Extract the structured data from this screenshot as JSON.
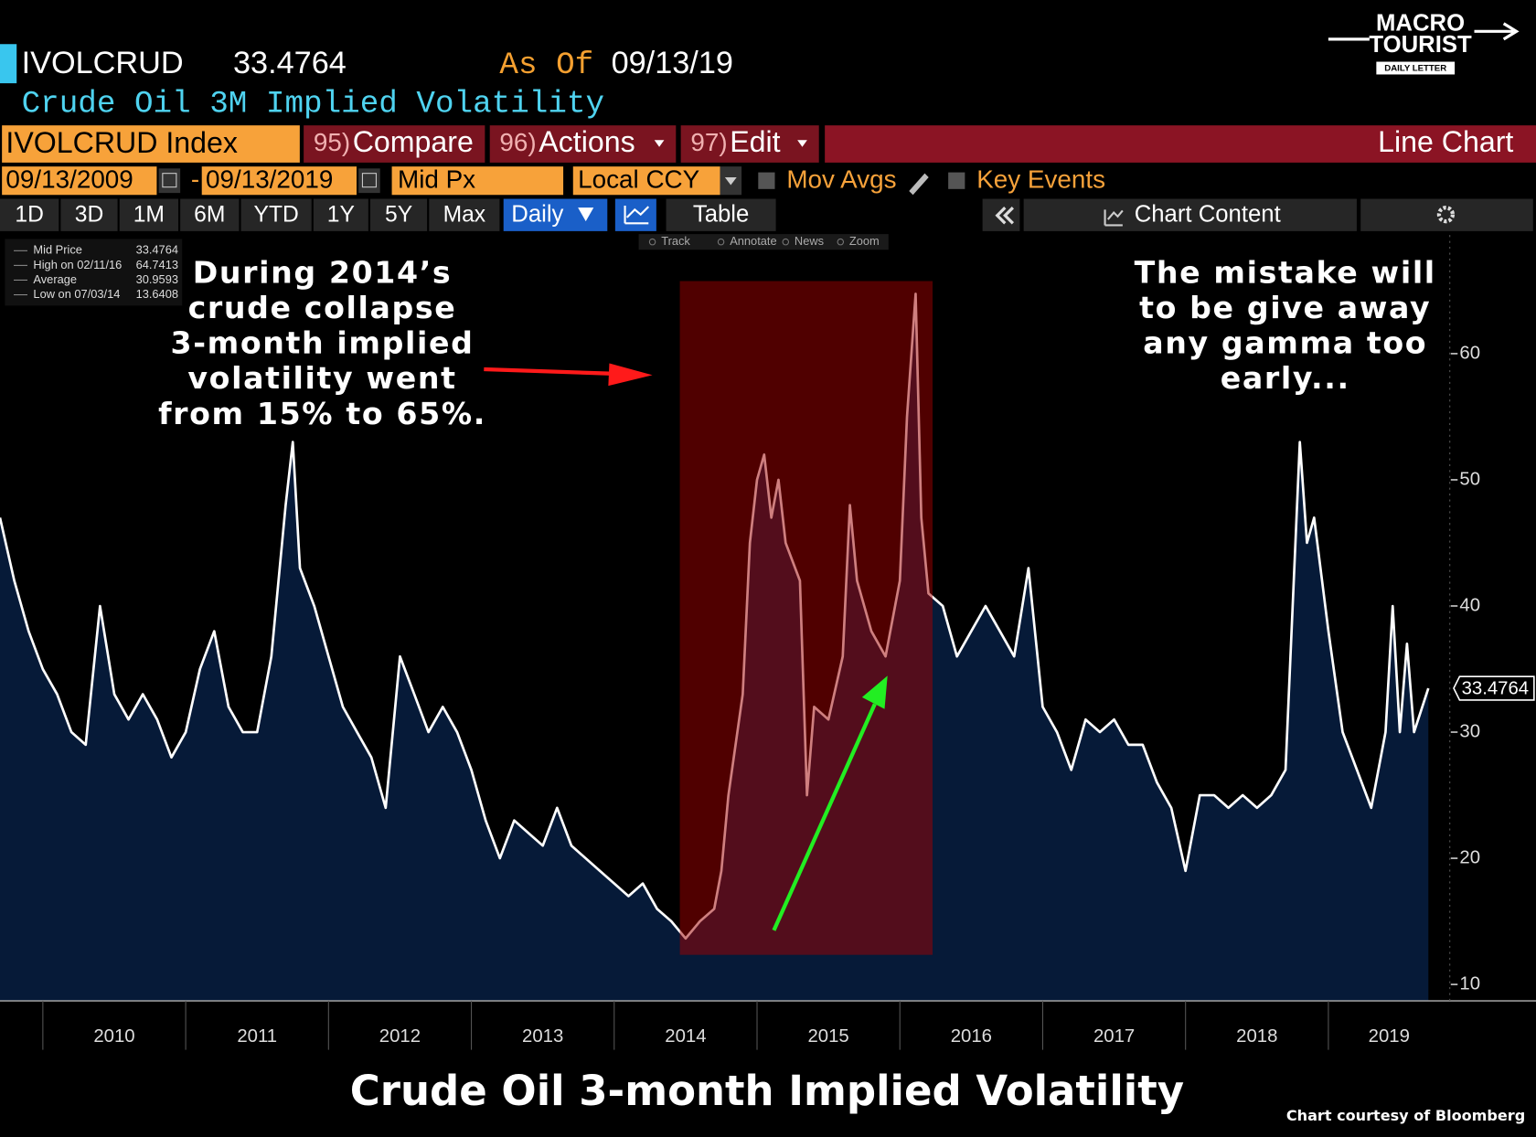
{
  "header": {
    "ticker": "IVOLCRUD",
    "price": "33.4764",
    "as_of_label": "As Of",
    "as_of_date": "09/13/19",
    "subtitle": "Crude Oil 3M Implied Volatility"
  },
  "logo": {
    "line1": "MACRO",
    "line2": "TOURIST",
    "line3": "DAILY LETTER"
  },
  "toolbar": {
    "security": "IVOLCRUD Index",
    "menus": [
      {
        "key": "95)",
        "label": "Compare"
      },
      {
        "key": "96)",
        "label": "Actions"
      },
      {
        "key": "97)",
        "label": "Edit"
      }
    ],
    "chart_type": "Line Chart",
    "start_date": "09/13/2009",
    "date_separator": "-",
    "end_date": "09/13/2019",
    "field": "Mid Px",
    "currency": "Local CCY",
    "mov_avgs": "Mov Avgs",
    "key_events": "Key Events",
    "periods": [
      "1D",
      "3D",
      "1M",
      "6M",
      "YTD",
      "1Y",
      "5Y",
      "Max"
    ],
    "frequency": "Daily",
    "table": "Table",
    "chart_content": "Chart Content",
    "tools": [
      "Track",
      "Annotate",
      "News",
      "Zoom"
    ]
  },
  "legend_stats": [
    {
      "label": "Mid Price",
      "value": "33.4764"
    },
    {
      "label": "High on 02/11/16",
      "value": "64.7413"
    },
    {
      "label": "Average",
      "value": "30.9593"
    },
    {
      "label": "Low on 07/03/14",
      "value": "13.6408"
    }
  ],
  "annotations": {
    "left": [
      "During 2014’s",
      "crude collapse",
      "3-month implied",
      "volatility went",
      "from 15% to 65%."
    ],
    "right": [
      "The mistake will",
      "to be give away",
      "any gamma too",
      "early..."
    ]
  },
  "footer": {
    "title": "Crude Oil 3-month Implied Volatility",
    "credit": "Chart courtesy of Bloomberg"
  },
  "chart_data": {
    "type": "line",
    "series": [
      {
        "name": "Mid Price",
        "color": "#ffffff",
        "x": [
          2009.7,
          2009.8,
          2009.9,
          2010.0,
          2010.1,
          2010.2,
          2010.3,
          2010.4,
          2010.5,
          2010.6,
          2010.7,
          2010.8,
          2010.9,
          2011.0,
          2011.1,
          2011.2,
          2011.3,
          2011.4,
          2011.5,
          2011.6,
          2011.7,
          2011.75,
          2011.8,
          2011.9,
          2012.0,
          2012.1,
          2012.2,
          2012.3,
          2012.4,
          2012.5,
          2012.6,
          2012.7,
          2012.8,
          2012.9,
          2013.0,
          2013.1,
          2013.2,
          2013.3,
          2013.4,
          2013.5,
          2013.6,
          2013.7,
          2013.8,
          2013.9,
          2014.0,
          2014.1,
          2014.2,
          2014.3,
          2014.4,
          2014.5,
          2014.6,
          2014.7,
          2014.75,
          2014.8,
          2014.9,
          2014.95,
          2015.0,
          2015.05,
          2015.1,
          2015.15,
          2015.2,
          2015.3,
          2015.35,
          2015.4,
          2015.5,
          2015.6,
          2015.65,
          2015.7,
          2015.8,
          2015.9,
          2016.0,
          2016.05,
          2016.11,
          2016.15,
          2016.2,
          2016.3,
          2016.4,
          2016.5,
          2016.6,
          2016.7,
          2016.8,
          2016.9,
          2017.0,
          2017.1,
          2017.2,
          2017.3,
          2017.4,
          2017.5,
          2017.6,
          2017.7,
          2017.8,
          2017.9,
          2018.0,
          2018.1,
          2018.2,
          2018.3,
          2018.4,
          2018.5,
          2018.6,
          2018.7,
          2018.75,
          2018.8,
          2018.85,
          2018.9,
          2019.0,
          2019.1,
          2019.2,
          2019.3,
          2019.4,
          2019.45,
          2019.5,
          2019.55,
          2019.6,
          2019.7
        ],
        "values": [
          47,
          42,
          38,
          35,
          33,
          30,
          29,
          40,
          33,
          31,
          33,
          31,
          28,
          30,
          35,
          38,
          32,
          30,
          30,
          36,
          48,
          53,
          43,
          40,
          36,
          32,
          30,
          28,
          24,
          36,
          33,
          30,
          32,
          30,
          27,
          23,
          20,
          23,
          22,
          21,
          24,
          21,
          20,
          19,
          18,
          17,
          18,
          16,
          15,
          13.6408,
          15,
          16,
          19,
          25,
          33,
          45,
          50,
          52,
          47,
          50,
          45,
          42,
          25,
          32,
          31,
          36,
          48,
          42,
          38,
          36,
          42,
          55,
          64.7413,
          47,
          41,
          40,
          36,
          38,
          40,
          38,
          36,
          43,
          32,
          30,
          27,
          31,
          30,
          31,
          29,
          29,
          26,
          24,
          19,
          25,
          25,
          24,
          25,
          24,
          25,
          27,
          40,
          53,
          45,
          47,
          38,
          30,
          27,
          24,
          30,
          40,
          30,
          37,
          30,
          33.4764
        ]
      }
    ],
    "xlim": [
      2009.7,
      2019.85
    ],
    "xticks": [
      2010,
      2011,
      2012,
      2013,
      2014,
      2015,
      2016,
      2017,
      2018,
      2019
    ],
    "ylim": [
      8.7,
      69.4
    ],
    "yticks": [
      10,
      20,
      30,
      40,
      50,
      60
    ],
    "area_color": "#061a38",
    "highlight_color": "#a00000"
  }
}
